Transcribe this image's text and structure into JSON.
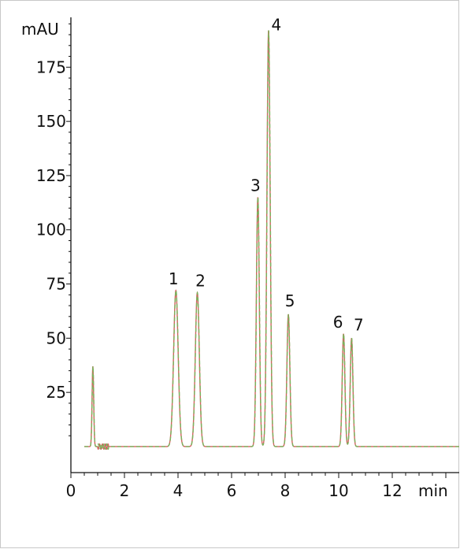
{
  "chart_data": {
    "type": "line",
    "ylabel": "mAU",
    "xlabel": "min",
    "xlim": [
      0,
      14.5
    ],
    "ylim": [
      -12,
      198
    ],
    "xticks": [
      0,
      2,
      4,
      6,
      8,
      10,
      12
    ],
    "yticks": [
      25,
      50,
      75,
      100,
      125,
      150,
      175
    ],
    "baseline": 0,
    "grid": false,
    "peaks": [
      {
        "label": "",
        "rt": 0.82,
        "height": 37,
        "width": 0.03
      },
      {
        "label": "1",
        "rt": 3.92,
        "height": 72,
        "width": 0.085
      },
      {
        "label": "2",
        "rt": 4.72,
        "height": 71,
        "width": 0.075
      },
      {
        "label": "3",
        "rt": 6.98,
        "height": 115,
        "width": 0.055
      },
      {
        "label": "4",
        "rt": 7.38,
        "height": 192,
        "width": 0.06
      },
      {
        "label": "5",
        "rt": 8.12,
        "height": 61,
        "width": 0.055
      },
      {
        "label": "6",
        "rt": 10.18,
        "height": 52,
        "width": 0.05
      },
      {
        "label": "7",
        "rt": 10.48,
        "height": 50,
        "width": 0.05
      }
    ],
    "series": [
      {
        "color": "#d1615d"
      },
      {
        "color": "#79b45c"
      }
    ]
  }
}
